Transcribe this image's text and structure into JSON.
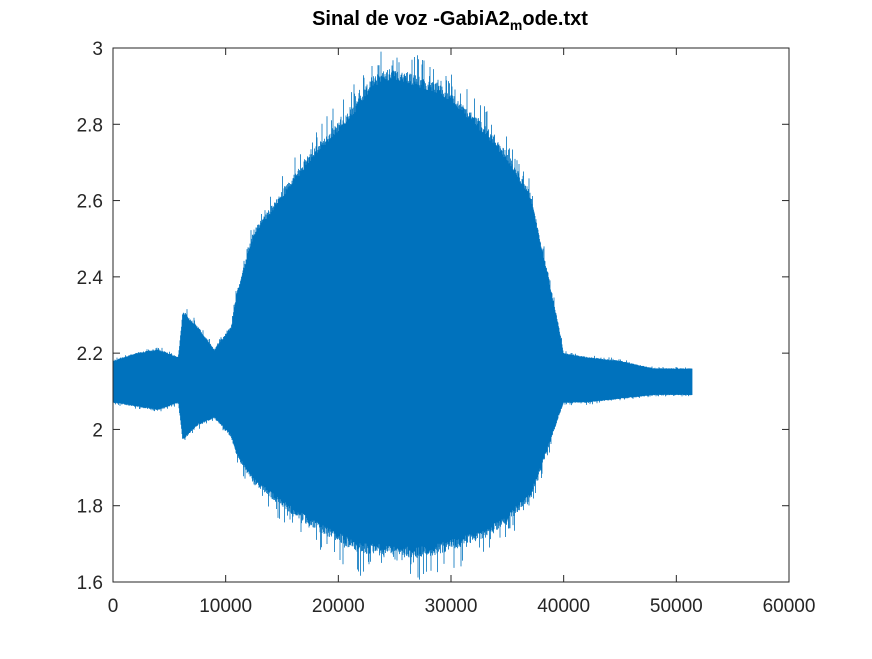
{
  "chart_data": {
    "type": "line",
    "title": "Sinal de voz -GabiA2",
    "title_subscript": "m",
    "title_suffix": "ode.txt",
    "xlabel": "",
    "ylabel": "",
    "xlim": [
      0,
      60000
    ],
    "ylim": [
      1.6,
      3.0
    ],
    "xticks": [
      0,
      10000,
      20000,
      30000,
      40000,
      50000,
      60000
    ],
    "xtick_labels": [
      "0",
      "10000",
      "20000",
      "30000",
      "40000",
      "50000",
      "60000"
    ],
    "yticks": [
      1.6,
      1.8,
      2.0,
      2.2,
      2.4,
      2.6,
      2.8,
      3.0
    ],
    "ytick_labels": [
      "1.6",
      "1.8",
      "2",
      "2.2",
      "2.4",
      "2.6",
      "2.8",
      "3"
    ],
    "grid": false,
    "legend": "none",
    "series": [
      {
        "color": "#0072BD",
        "sample_count": 51500,
        "envelope": {
          "x": [
            0,
            2000,
            4000,
            5800,
            6200,
            7500,
            9000,
            10500,
            11000,
            12500,
            15000,
            17500,
            20000,
            22000,
            23000,
            25000,
            27000,
            29000,
            31000,
            33000,
            35000,
            37000,
            38500,
            39500,
            40000,
            42000,
            45000,
            48000,
            50000,
            51400
          ],
          "upper": [
            2.18,
            2.2,
            2.21,
            2.19,
            2.31,
            2.27,
            2.21,
            2.27,
            2.36,
            2.52,
            2.62,
            2.72,
            2.8,
            2.87,
            2.92,
            2.94,
            2.92,
            2.9,
            2.85,
            2.79,
            2.72,
            2.62,
            2.42,
            2.28,
            2.2,
            2.19,
            2.18,
            2.16,
            2.16,
            2.16
          ],
          "lower": [
            2.07,
            2.06,
            2.05,
            2.07,
            1.97,
            2.01,
            2.03,
            1.98,
            1.93,
            1.86,
            1.8,
            1.75,
            1.71,
            1.68,
            1.68,
            1.67,
            1.67,
            1.68,
            1.7,
            1.72,
            1.76,
            1.82,
            1.94,
            2.03,
            2.07,
            2.07,
            2.08,
            2.09,
            2.09,
            2.09
          ]
        }
      }
    ]
  }
}
